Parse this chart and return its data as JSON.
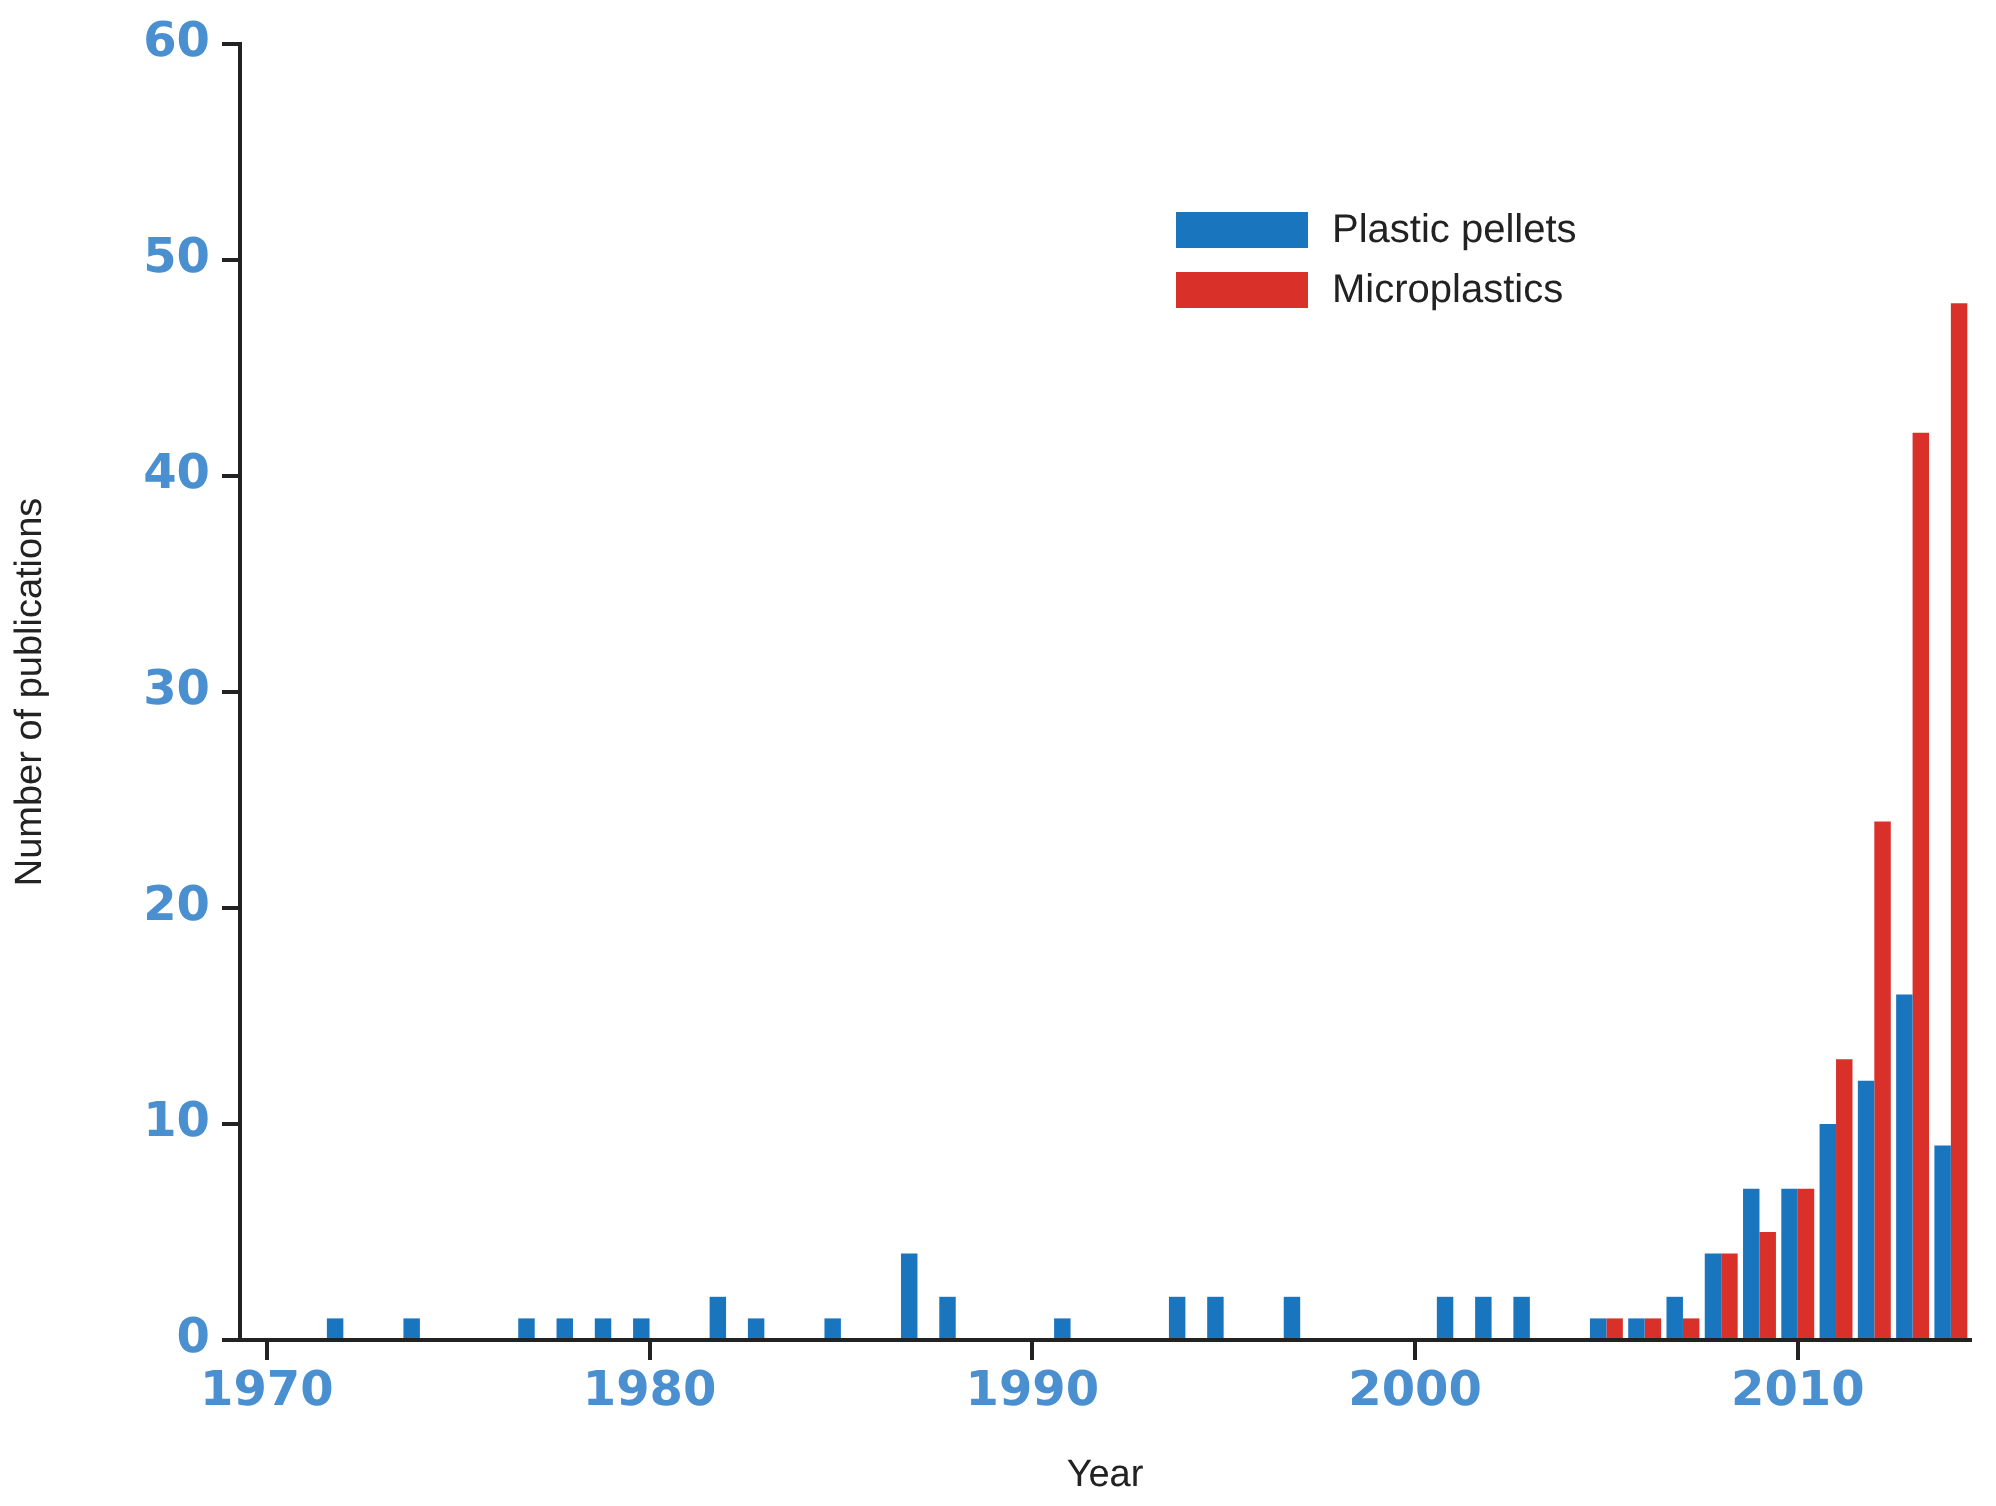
{
  "chart_data": {
    "type": "bar",
    "xlabel": "Year",
    "ylabel": "Number of publications",
    "x": [
      1972,
      1974,
      1977,
      1978,
      1979,
      1980,
      1982,
      1983,
      1985,
      1987,
      1988,
      1991,
      1994,
      1995,
      1997,
      2001,
      2002,
      2003,
      2005,
      2006,
      2007,
      2008,
      2009,
      2010,
      2011,
      2012,
      2013,
      2014
    ],
    "series": [
      {
        "name": "Plastic pellets",
        "color": "#1a75bf",
        "values": [
          1,
          1,
          1,
          1,
          1,
          1,
          2,
          1,
          1,
          4,
          2,
          1,
          2,
          2,
          2,
          2,
          2,
          2,
          1,
          1,
          2,
          4,
          7,
          7,
          10,
          12,
          16,
          9
        ]
      },
      {
        "name": "Microplastics",
        "color": "#d9302a",
        "values": [
          null,
          null,
          null,
          null,
          null,
          null,
          null,
          null,
          null,
          null,
          null,
          null,
          null,
          null,
          null,
          null,
          null,
          null,
          1,
          1,
          1,
          4,
          5,
          7,
          13,
          24,
          42,
          48
        ]
      }
    ],
    "xlim": [
      1969.3,
      2014.5
    ],
    "xticks": [
      1970,
      1980,
      1990,
      2000,
      2010
    ],
    "ylim": [
      0,
      60
    ],
    "yticks": [
      0,
      10,
      20,
      30,
      40,
      50,
      60
    ],
    "grid": false,
    "legend": "top right"
  }
}
